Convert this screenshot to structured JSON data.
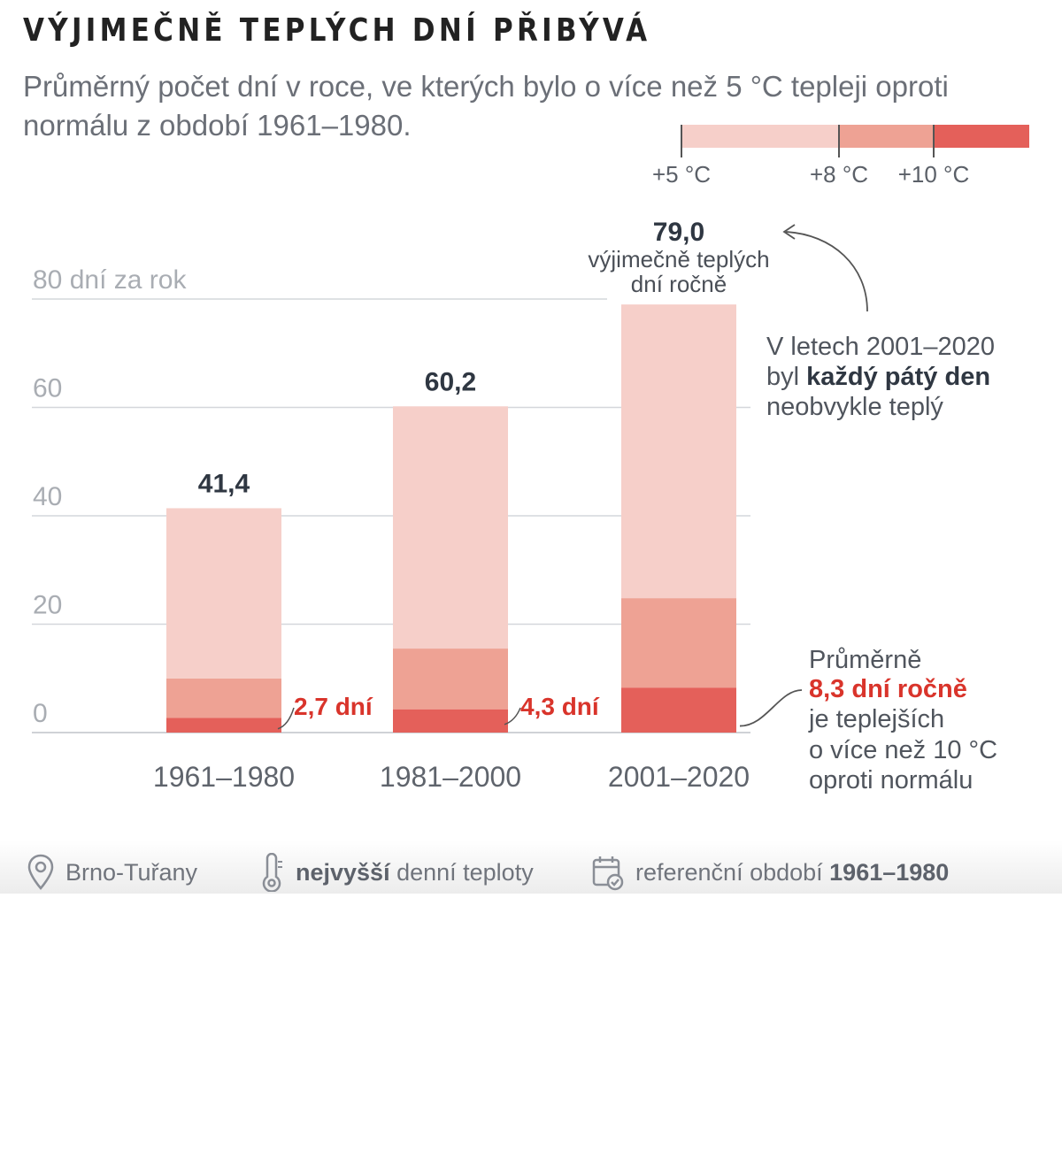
{
  "header": {
    "title": "VÝJIMEČNĚ TEPLÝCH DNÍ PŘIBÝVÁ",
    "subtitle": "Průměrný počet dní v roce, ve kterých bylo o více než 5 °C tepleji oproti normálu z období 1961–1980."
  },
  "legend": {
    "items": [
      {
        "label": "+5 °C",
        "color": "#f6cfc9"
      },
      {
        "label": "+8 °C",
        "color": "#eea294"
      },
      {
        "label": "+10 °C",
        "color": "#e4605a"
      }
    ]
  },
  "chart_data": {
    "type": "bar",
    "stacked": true,
    "categories": [
      "1961–1980",
      "1981–2000",
      "2001–2020"
    ],
    "series": [
      {
        "name": "+10 °C",
        "color": "#e4605a",
        "values": [
          2.7,
          4.3,
          8.3
        ]
      },
      {
        "name": "+8 °C",
        "color": "#eea294",
        "values": [
          7.3,
          11.2,
          16.5
        ]
      },
      {
        "name": "+5 °C",
        "color": "#f6cfc9",
        "values": [
          31.4,
          44.7,
          54.2
        ]
      }
    ],
    "totals": [
      41.4,
      60.2,
      79.0
    ],
    "total_labels": [
      "41,4",
      "60,2",
      "79,0"
    ],
    "bottom_labels": [
      "2,7 dní",
      "4,3 dní"
    ],
    "yticks": [
      0,
      20,
      40,
      60,
      80
    ],
    "ytick_labels": [
      "0",
      "20",
      "40",
      "60",
      "80 dní za rok"
    ],
    "ylim": [
      0,
      80
    ],
    "grid": true,
    "annotations": {
      "top_caption": [
        "výjimečně teplých",
        "dní ročně"
      ],
      "share": [
        "V letech 2001–2020",
        "byl ",
        "každý pátý den",
        "neobvykle teplý"
      ],
      "hot": [
        "Průměrně",
        "8,3 dní ročně",
        "je teplejších",
        "o více než 10 °C",
        "oproti normálu"
      ]
    }
  },
  "footer": {
    "location": "Brno-Tuřany",
    "temp_bold": "nejvyšší",
    "temp_rest": " denní teploty",
    "period_prefix": "referenční období ",
    "period_bold": "1961–1980"
  }
}
